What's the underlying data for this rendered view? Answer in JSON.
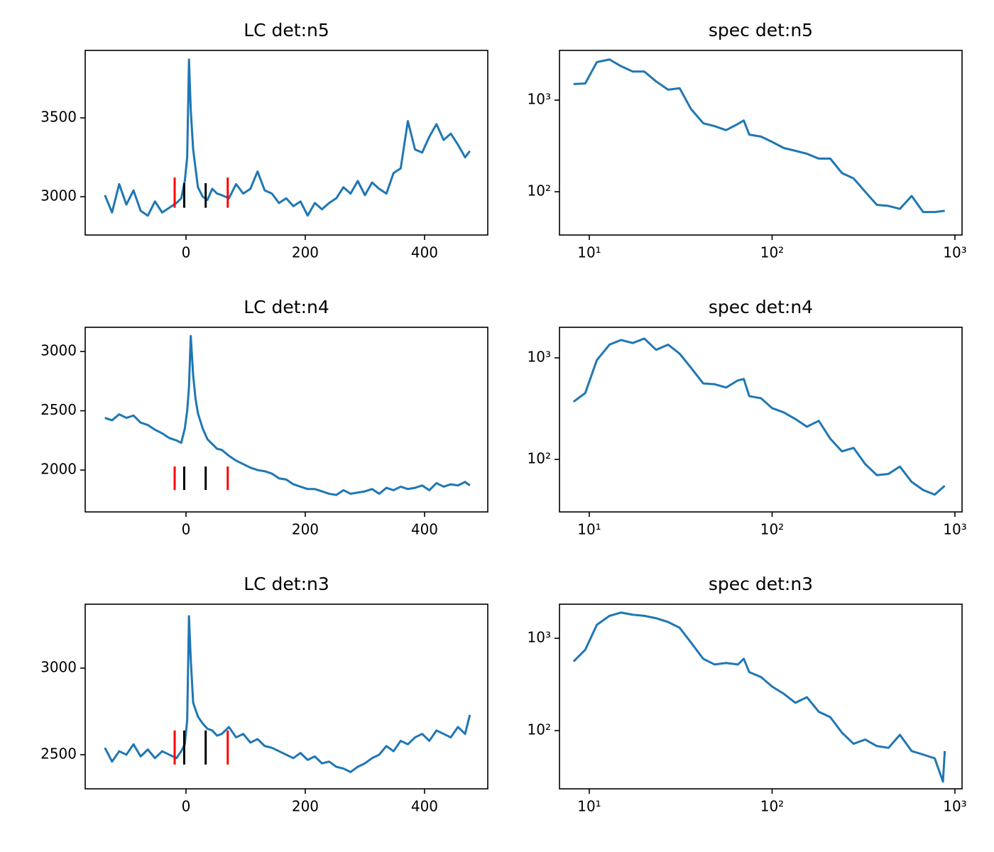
{
  "chart_data": [
    {
      "type": "line",
      "title": "LC det:n5",
      "color": "#1f77b4",
      "x": [
        -136,
        -124,
        -112,
        -100,
        -88,
        -76,
        -64,
        -52,
        -40,
        -28,
        -16,
        -8,
        -2,
        2,
        5,
        8,
        12,
        16,
        20,
        28,
        36,
        44,
        52,
        60,
        72,
        84,
        96,
        108,
        120,
        132,
        144,
        156,
        168,
        180,
        192,
        204,
        216,
        228,
        240,
        252,
        264,
        276,
        288,
        300,
        312,
        324,
        336,
        348,
        360,
        372,
        384,
        396,
        408,
        420,
        432,
        444,
        456,
        468,
        476
      ],
      "values": [
        3010,
        2900,
        3080,
        2950,
        3040,
        2910,
        2880,
        2970,
        2900,
        2930,
        2960,
        2990,
        3100,
        3250,
        3870,
        3550,
        3300,
        3180,
        3060,
        3000,
        2980,
        3050,
        3020,
        3010,
        2990,
        3080,
        3020,
        3050,
        3160,
        3040,
        3020,
        2960,
        2990,
        2940,
        2970,
        2880,
        2960,
        2920,
        2960,
        2990,
        3060,
        3020,
        3100,
        3010,
        3090,
        3050,
        3020,
        3150,
        3180,
        3480,
        3300,
        3280,
        3380,
        3460,
        3360,
        3400,
        3330,
        3250,
        3290
      ],
      "markers": [
        {
          "x": -19,
          "ymin": 2930,
          "ymax": 3122,
          "color": "#ff0000"
        },
        {
          "x": -3,
          "ymin": 2930,
          "ymax": 3086,
          "color": "#000000"
        },
        {
          "x": 33,
          "ymin": 2930,
          "ymax": 3086,
          "color": "#000000"
        },
        {
          "x": 70,
          "ymin": 2930,
          "ymax": 3122,
          "color": "#ff0000"
        }
      ],
      "xlim": [
        -169,
        506
      ],
      "ylim": [
        2757,
        3928
      ],
      "xticks": [
        0,
        200,
        400
      ],
      "yticks": [
        3000,
        3500
      ]
    },
    {
      "type": "line",
      "title": "spec det:n5",
      "color": "#1f77b4",
      "xscale": "log",
      "yscale": "log",
      "x": [
        8.2,
        9.5,
        11,
        12.9,
        14.9,
        17.3,
        20,
        23.2,
        27,
        31.2,
        36,
        42,
        48.5,
        56,
        65,
        70,
        75,
        87,
        100,
        116,
        134,
        155,
        180,
        208,
        241,
        279,
        323,
        374,
        433,
        500,
        580,
        670,
        776,
        880
      ],
      "values": [
        1500,
        1520,
        2600,
        2780,
        2350,
        2050,
        2050,
        1600,
        1300,
        1350,
        800,
        560,
        520,
        470,
        550,
        600,
        420,
        400,
        350,
        300,
        280,
        260,
        230,
        230,
        160,
        140,
        100,
        72,
        70,
        65,
        90,
        60,
        60,
        62
      ],
      "xlim": [
        6.87,
        1094
      ],
      "ylim": [
        33.7,
        3490
      ],
      "xticks": [
        {
          "value": 10,
          "label": "10¹"
        },
        {
          "value": 100,
          "label": "10²"
        },
        {
          "value": 1000,
          "label": "10³"
        }
      ],
      "yticks": [
        {
          "value": 100,
          "label": "10²"
        },
        {
          "value": 1000,
          "label": "10³"
        }
      ]
    },
    {
      "type": "line",
      "title": "LC det:n4",
      "color": "#1f77b4",
      "x": [
        -136,
        -124,
        -112,
        -100,
        -88,
        -76,
        -64,
        -52,
        -40,
        -28,
        -16,
        -8,
        -2,
        2,
        5,
        8,
        12,
        16,
        20,
        28,
        36,
        44,
        52,
        60,
        72,
        84,
        96,
        108,
        120,
        132,
        144,
        156,
        168,
        180,
        192,
        204,
        216,
        228,
        240,
        252,
        264,
        276,
        288,
        300,
        312,
        324,
        336,
        348,
        360,
        372,
        384,
        396,
        408,
        420,
        432,
        444,
        456,
        468,
        476
      ],
      "values": [
        2440,
        2420,
        2470,
        2440,
        2460,
        2400,
        2380,
        2340,
        2310,
        2270,
        2250,
        2230,
        2350,
        2500,
        2700,
        3130,
        2800,
        2600,
        2480,
        2350,
        2260,
        2220,
        2180,
        2170,
        2120,
        2080,
        2050,
        2020,
        2000,
        1990,
        1970,
        1930,
        1920,
        1880,
        1860,
        1840,
        1840,
        1820,
        1800,
        1790,
        1830,
        1800,
        1810,
        1820,
        1840,
        1800,
        1850,
        1830,
        1860,
        1840,
        1850,
        1870,
        1830,
        1890,
        1860,
        1880,
        1870,
        1900,
        1870
      ],
      "markers": [
        {
          "x": -19,
          "ymin": 1832,
          "ymax": 2030,
          "color": "#ff0000"
        },
        {
          "x": -3,
          "ymin": 1832,
          "ymax": 2030,
          "color": "#000000"
        },
        {
          "x": 33,
          "ymin": 1832,
          "ymax": 2030,
          "color": "#000000"
        },
        {
          "x": 70,
          "ymin": 1832,
          "ymax": 2030,
          "color": "#ff0000"
        }
      ],
      "xlim": [
        -169,
        506
      ],
      "ylim": [
        1647,
        3204
      ],
      "xticks": [
        0,
        200,
        400
      ],
      "yticks": [
        2000,
        2500,
        3000
      ]
    },
    {
      "type": "line",
      "title": "spec det:n4",
      "color": "#1f77b4",
      "xscale": "log",
      "yscale": "log",
      "x": [
        8.2,
        9.5,
        11,
        12.9,
        14.9,
        17.3,
        20,
        23.2,
        27,
        31.2,
        36,
        42,
        48.5,
        56,
        65,
        70,
        75,
        87,
        100,
        116,
        134,
        155,
        180,
        208,
        241,
        279,
        323,
        374,
        433,
        500,
        580,
        670,
        776,
        880
      ],
      "values": [
        370,
        450,
        950,
        1350,
        1500,
        1400,
        1550,
        1200,
        1350,
        1100,
        800,
        560,
        550,
        510,
        600,
        620,
        420,
        400,
        320,
        290,
        250,
        210,
        240,
        160,
        120,
        130,
        90,
        70,
        72,
        85,
        60,
        50,
        45,
        55
      ],
      "xlim": [
        6.87,
        1094
      ],
      "ylim": [
        30.4,
        2000
      ],
      "xticks": [
        {
          "value": 10,
          "label": "10¹"
        },
        {
          "value": 100,
          "label": "10²"
        },
        {
          "value": 1000,
          "label": "10³"
        }
      ],
      "yticks": [
        {
          "value": 100,
          "label": "10²"
        },
        {
          "value": 1000,
          "label": "10³"
        }
      ]
    },
    {
      "type": "line",
      "title": "LC det:n3",
      "color": "#1f77b4",
      "x": [
        -136,
        -124,
        -112,
        -100,
        -88,
        -76,
        -64,
        -52,
        -40,
        -28,
        -16,
        -8,
        -2,
        2,
        5,
        8,
        12,
        16,
        20,
        28,
        36,
        44,
        52,
        60,
        72,
        84,
        96,
        108,
        120,
        132,
        144,
        156,
        168,
        180,
        192,
        204,
        216,
        228,
        240,
        252,
        264,
        276,
        288,
        300,
        312,
        324,
        336,
        348,
        360,
        372,
        384,
        396,
        408,
        420,
        432,
        444,
        456,
        468,
        476
      ],
      "values": [
        2540,
        2460,
        2520,
        2500,
        2560,
        2490,
        2530,
        2480,
        2520,
        2500,
        2480,
        2520,
        2560,
        2700,
        3300,
        3050,
        2800,
        2760,
        2720,
        2680,
        2650,
        2640,
        2610,
        2620,
        2660,
        2600,
        2620,
        2570,
        2590,
        2550,
        2540,
        2520,
        2500,
        2480,
        2510,
        2470,
        2490,
        2450,
        2460,
        2430,
        2420,
        2400,
        2430,
        2450,
        2480,
        2500,
        2550,
        2520,
        2580,
        2560,
        2600,
        2620,
        2580,
        2640,
        2620,
        2600,
        2660,
        2620,
        2730
      ],
      "markers": [
        {
          "x": -19,
          "ymin": 2443,
          "ymax": 2640,
          "color": "#ff0000"
        },
        {
          "x": -3,
          "ymin": 2443,
          "ymax": 2640,
          "color": "#000000"
        },
        {
          "x": 33,
          "ymin": 2443,
          "ymax": 2640,
          "color": "#000000"
        },
        {
          "x": 70,
          "ymin": 2443,
          "ymax": 2640,
          "color": "#ff0000"
        }
      ],
      "xlim": [
        -169,
        506
      ],
      "ylim": [
        2303,
        3369
      ],
      "xticks": [
        0,
        200,
        400
      ],
      "yticks": [
        2500,
        3000
      ]
    },
    {
      "type": "line",
      "title": "spec det:n3",
      "color": "#1f77b4",
      "xscale": "log",
      "yscale": "log",
      "x": [
        8.2,
        9.5,
        11,
        12.9,
        14.9,
        17.3,
        20,
        23.2,
        27,
        31.2,
        36,
        42,
        48.5,
        56,
        65,
        70,
        75,
        87,
        100,
        116,
        134,
        155,
        180,
        208,
        241,
        279,
        323,
        374,
        433,
        500,
        580,
        670,
        776,
        860,
        880
      ],
      "values": [
        560,
        750,
        1400,
        1750,
        1900,
        1800,
        1750,
        1650,
        1500,
        1300,
        900,
        600,
        520,
        540,
        520,
        600,
        430,
        380,
        300,
        250,
        200,
        230,
        160,
        140,
        95,
        72,
        80,
        68,
        65,
        90,
        60,
        55,
        50,
        28,
        60
      ],
      "xlim": [
        6.87,
        1094
      ],
      "ylim": [
        23.4,
        2340
      ],
      "xticks": [
        {
          "value": 10,
          "label": "10¹"
        },
        {
          "value": 100,
          "label": "10²"
        },
        {
          "value": 1000,
          "label": "10³"
        }
      ],
      "yticks": [
        {
          "value": 100,
          "label": "10²"
        },
        {
          "value": 1000,
          "label": "10³"
        }
      ]
    }
  ]
}
